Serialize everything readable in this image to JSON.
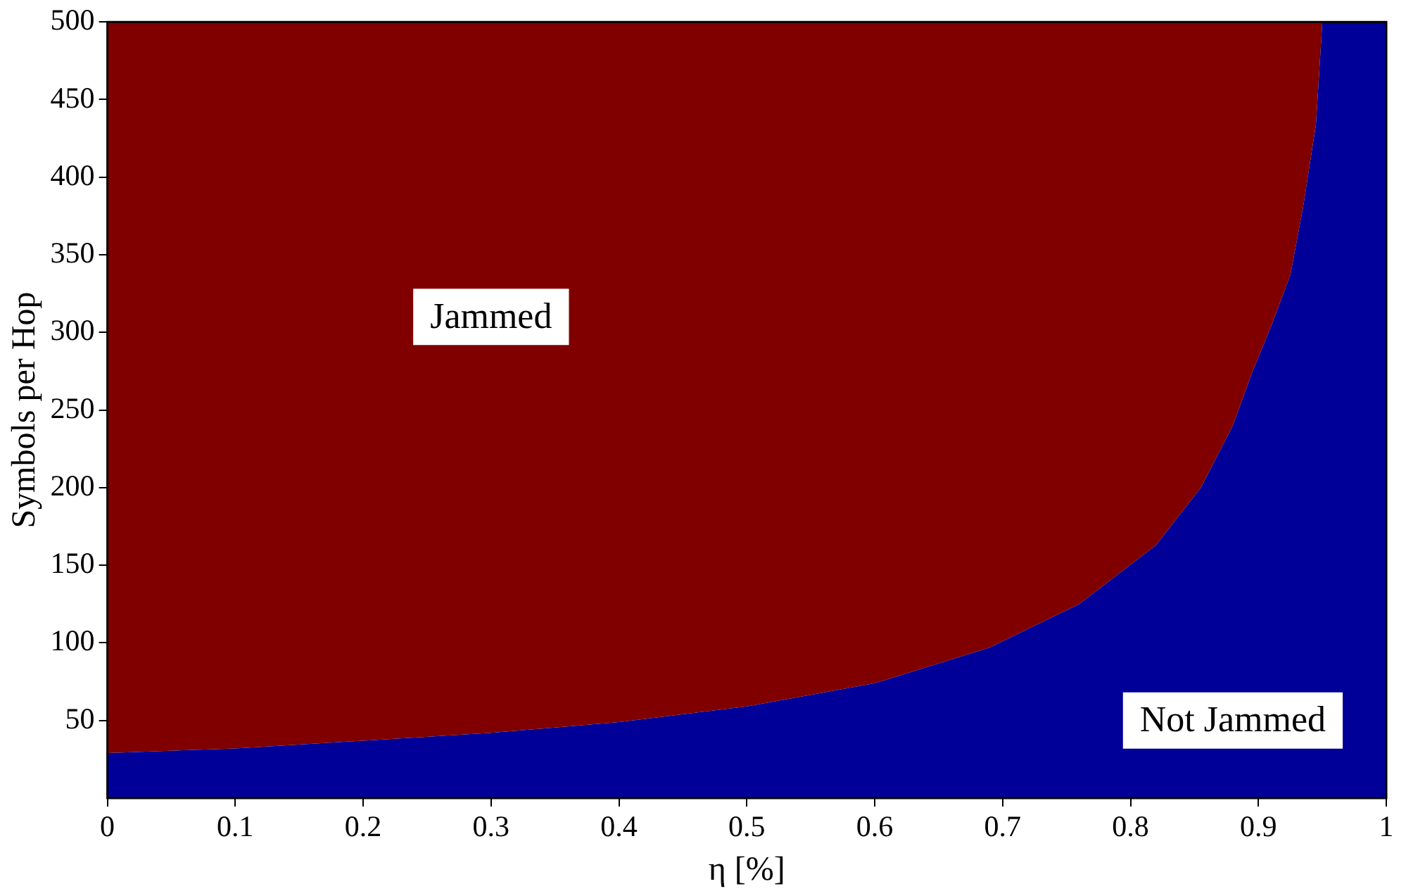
{
  "chart_data": {
    "type": "area",
    "xlabel": "η [%]",
    "ylabel": "Symbols per Hop",
    "x": [
      0,
      0.1,
      0.2,
      0.3,
      0.4,
      0.5,
      0.6,
      0.69,
      0.76,
      0.82,
      0.855,
      0.88,
      0.895,
      0.91,
      0.925,
      0.935,
      0.945,
      0.95,
      1
    ],
    "series": [
      {
        "color": "#000099",
        "values": [
          29,
          32,
          37,
          42,
          49,
          59,
          74,
          97,
          125,
          163,
          200,
          240,
          274,
          304,
          337,
          381,
          434,
          500,
          500
        ]
      },
      {
        "color": "#800000",
        "values": [
          471,
          468,
          463,
          458,
          451,
          441,
          426,
          403,
          375,
          337,
          300,
          260,
          226,
          196,
          163,
          119,
          66,
          0,
          0
        ]
      }
    ],
    "stacked": true,
    "xlim": [
      0,
      1
    ],
    "xticks": [
      0,
      0.1,
      0.2,
      0.3,
      0.4,
      0.5,
      0.6,
      0.7,
      0.8,
      0.9,
      1
    ],
    "ylim": [
      0,
      500
    ],
    "yticks": [
      50,
      100,
      150,
      200,
      250,
      300,
      350,
      400,
      450,
      500
    ],
    "legend": false,
    "annotations": [
      "Jammed",
      "Not Jammed"
    ]
  }
}
